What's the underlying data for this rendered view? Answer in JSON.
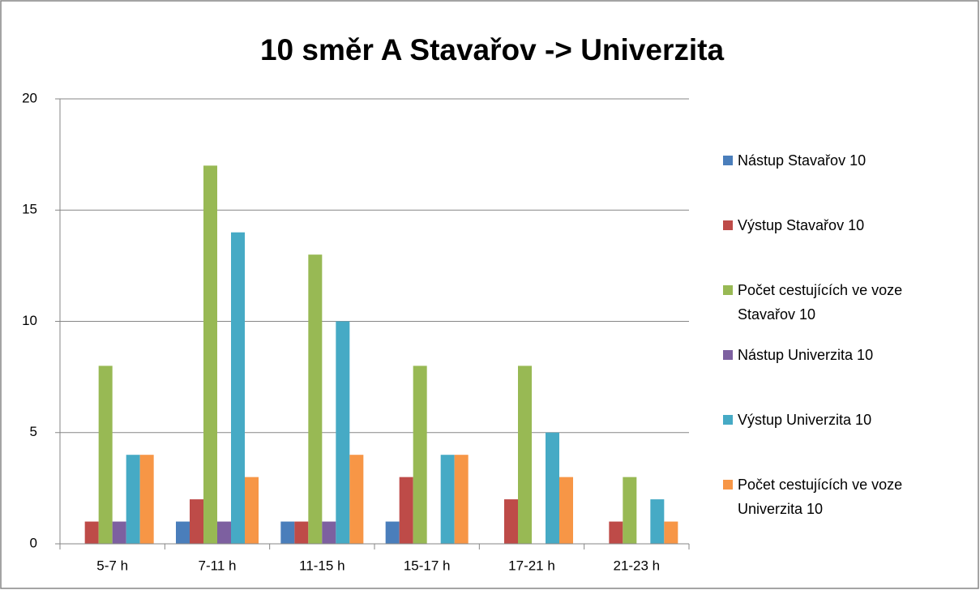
{
  "chart_data": {
    "type": "bar",
    "title": "10 směr A Stavařov -> Univerzita",
    "categories": [
      "5-7 h",
      "7-11 h",
      "11-15 h",
      "15-17 h",
      "17-21 h",
      "21-23 h"
    ],
    "series": [
      {
        "name": "Nástup Stavařov 10",
        "color": "#4a7ebb",
        "values": [
          0,
          1,
          1,
          1,
          0,
          0
        ]
      },
      {
        "name": "Výstup Stavařov 10",
        "color": "#be4b48",
        "values": [
          1,
          2,
          1,
          3,
          2,
          1
        ]
      },
      {
        "name": "Počet cestujících ve voze Stavařov 10",
        "color": "#98b954",
        "values": [
          8,
          17,
          13,
          8,
          8,
          3
        ]
      },
      {
        "name": "Nástup Univerzita 10",
        "color": "#7d60a0",
        "values": [
          1,
          1,
          1,
          0,
          0,
          0
        ]
      },
      {
        "name": "Výstup Univerzita 10",
        "color": "#46aac5",
        "values": [
          4,
          14,
          10,
          4,
          5,
          2
        ]
      },
      {
        "name": "Počet cestujících ve voze Univerzita 10",
        "color": "#f79646",
        "values": [
          4,
          3,
          4,
          4,
          3,
          1
        ]
      }
    ],
    "ylim": [
      0,
      20
    ],
    "yticks": [
      0,
      5,
      10,
      15,
      20
    ],
    "grid": true,
    "legend": "right"
  }
}
